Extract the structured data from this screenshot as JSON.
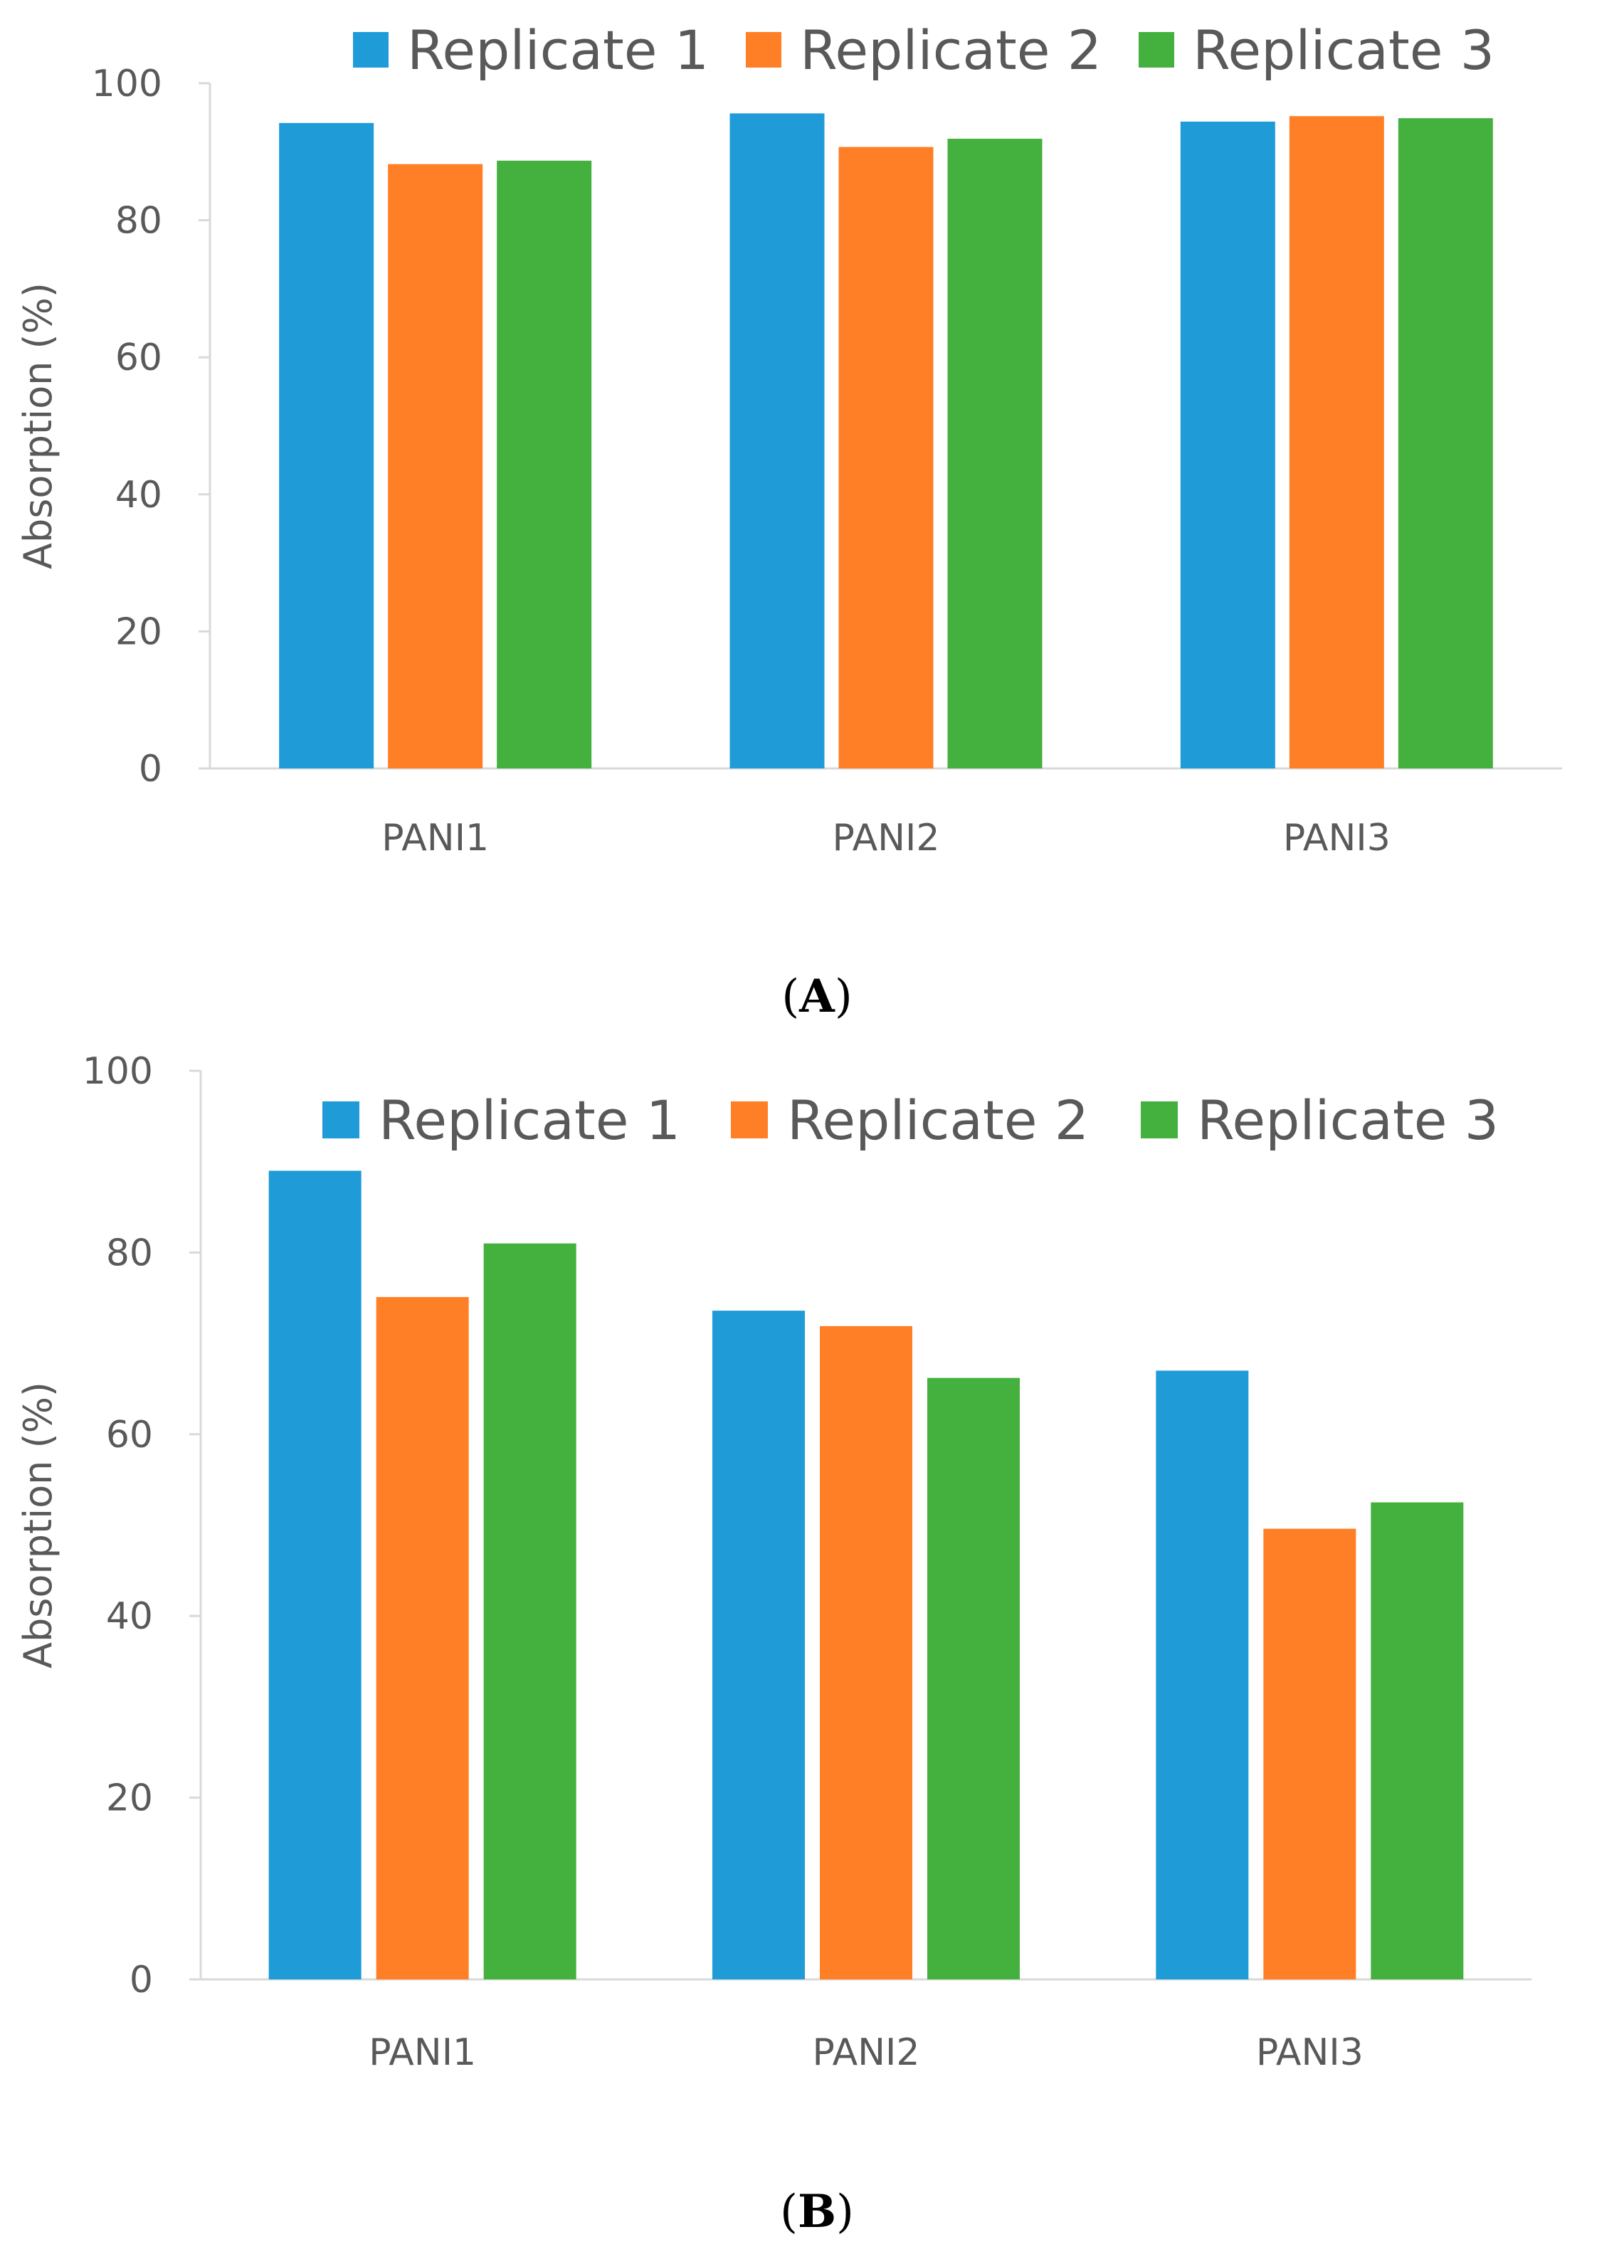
{
  "chart_data": [
    {
      "type": "bar",
      "panel": "A",
      "categories": [
        "PANI1",
        "PANI2",
        "PANI3"
      ],
      "series": [
        {
          "name": "Replicate 1",
          "values": [
            94.2,
            95.6,
            94.4
          ]
        },
        {
          "name": "Replicate 2",
          "values": [
            88.2,
            90.7,
            95.2
          ]
        },
        {
          "name": "Replicate 3",
          "values": [
            88.7,
            91.9,
            94.9
          ]
        }
      ],
      "title": "",
      "xlabel": "",
      "ylabel": "Absorption (%)",
      "ylim": [
        0,
        100
      ],
      "yticks": [
        0,
        20,
        40,
        60,
        80,
        100
      ],
      "grid": false,
      "legend_position": "top"
    },
    {
      "type": "bar",
      "panel": "B",
      "categories": [
        "PANI1",
        "PANI2",
        "PANI3"
      ],
      "series": [
        {
          "name": "Replicate 1",
          "values": [
            89.0,
            73.6,
            67.0
          ]
        },
        {
          "name": "Replicate 2",
          "values": [
            75.1,
            71.9,
            49.6
          ]
        },
        {
          "name": "Replicate 3",
          "values": [
            81.0,
            66.2,
            52.5
          ]
        }
      ],
      "title": "",
      "xlabel": "",
      "ylabel": "Absorption (%)",
      "ylim": [
        0,
        100
      ],
      "yticks": [
        0,
        20,
        40,
        60,
        80,
        100
      ],
      "grid": false,
      "legend_position": "top-right"
    }
  ],
  "series_colors": [
    "#1f9bd8",
    "#ff7f27",
    "#44b03e"
  ],
  "axis_color": "#d9d9d9",
  "text_color": "#595959",
  "panels": {
    "a": {
      "paren_open": "(",
      "letter": "A",
      "paren_close": ")"
    },
    "b": {
      "paren_open": "(",
      "letter": "B",
      "paren_close": ")"
    }
  }
}
